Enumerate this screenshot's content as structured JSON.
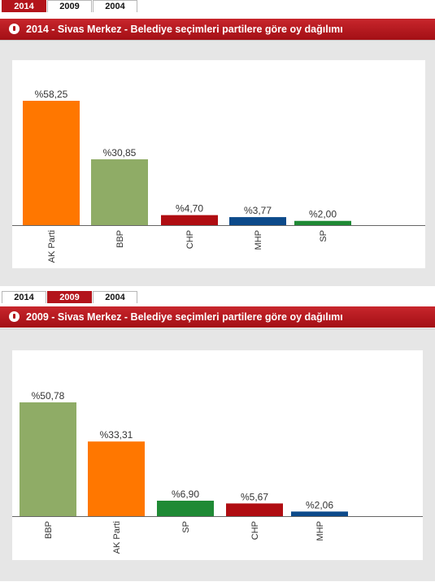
{
  "tabs": [
    "2014",
    "2009",
    "2004"
  ],
  "colors": {
    "AK Parti": "#ff7700",
    "BBP": "#8fac66",
    "CHP": "#b00d12",
    "MHP": "#0c4a8a",
    "SP": "#1f8a35"
  },
  "panels": [
    {
      "active_tab": "2014",
      "title": "2014 - Sivas Merkez - Belediye seçimleri partilere göre oy dağılımı",
      "chart_data": {
        "type": "bar",
        "title": "2014 - Sivas Merkez - Belediye seçimleri partilere göre oy dağılımı",
        "categories": [
          "AK Parti",
          "BBP",
          "CHP",
          "MHP",
          "SP"
        ],
        "values": [
          58.25,
          30.85,
          4.7,
          3.77,
          2.0
        ],
        "value_labels": [
          "%58,25",
          "%30,85",
          "%4,70",
          "%3,77",
          "%2,00"
        ],
        "ylim": [
          0,
          60
        ]
      }
    },
    {
      "active_tab": "2009",
      "title": "2009 - Sivas Merkez - Belediye seçimleri partilere göre oy dağılımı",
      "chart_data": {
        "type": "bar",
        "title": "2009 - Sivas Merkez - Belediye seçimleri partilere göre oy dağılımı",
        "categories": [
          "BBP",
          "AK Parti",
          "SP",
          "CHP",
          "MHP"
        ],
        "values": [
          50.78,
          33.31,
          6.9,
          5.67,
          2.06
        ],
        "value_labels": [
          "%50,78",
          "%33,31",
          "%6,90",
          "%5,67",
          "%2,06"
        ],
        "ylim": [
          0,
          54
        ]
      }
    }
  ]
}
